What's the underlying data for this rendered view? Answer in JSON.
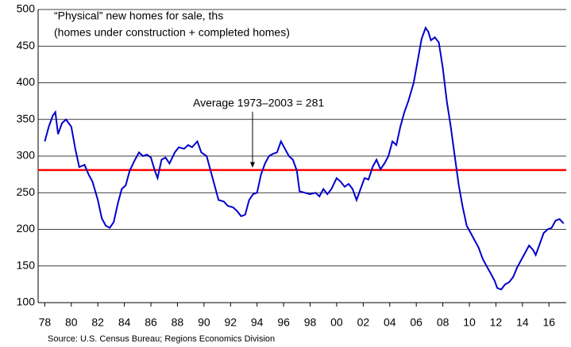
{
  "chart_data": {
    "type": "line",
    "title": "“Physical” new homes for sale, ths",
    "subtitle": "(homes under construction + completed homes)",
    "source": "Source: U.S. Census Bureau; Regions Economics Division",
    "annotation": "Average 1973–2003 = 281",
    "reference_line": {
      "value": 281,
      "color": "#ff0000"
    },
    "ylim": [
      100,
      500
    ],
    "yticks": [
      100,
      150,
      200,
      250,
      300,
      350,
      400,
      450,
      500
    ],
    "xlim": [
      1977.5,
      2017.3
    ],
    "xticks": [
      {
        "value": 1978,
        "label": "78"
      },
      {
        "value": 1980,
        "label": "80"
      },
      {
        "value": 1982,
        "label": "82"
      },
      {
        "value": 1984,
        "label": "84"
      },
      {
        "value": 1986,
        "label": "86"
      },
      {
        "value": 1988,
        "label": "88"
      },
      {
        "value": 1990,
        "label": "90"
      },
      {
        "value": 1992,
        "label": "92"
      },
      {
        "value": 1994,
        "label": "94"
      },
      {
        "value": 1996,
        "label": "96"
      },
      {
        "value": 1998,
        "label": "98"
      },
      {
        "value": 2000,
        "label": "00"
      },
      {
        "value": 2002,
        "label": "02"
      },
      {
        "value": 2004,
        "label": "04"
      },
      {
        "value": 2006,
        "label": "06"
      },
      {
        "value": 2008,
        "label": "08"
      },
      {
        "value": 2010,
        "label": "10"
      },
      {
        "value": 2012,
        "label": "12"
      },
      {
        "value": 2014,
        "label": "14"
      },
      {
        "value": 2016,
        "label": "16"
      }
    ],
    "grid": true,
    "series": [
      {
        "color": "#0000cc",
        "x": [
          1978.0,
          1978.3,
          1978.6,
          1978.8,
          1979.0,
          1979.3,
          1979.6,
          1980.0,
          1980.3,
          1980.6,
          1981.0,
          1981.3,
          1981.6,
          1982.0,
          1982.3,
          1982.6,
          1982.9,
          1983.2,
          1983.5,
          1983.8,
          1984.1,
          1984.4,
          1984.8,
          1985.1,
          1985.4,
          1985.7,
          1986.0,
          1986.3,
          1986.5,
          1986.8,
          1987.1,
          1987.4,
          1987.8,
          1988.1,
          1988.5,
          1988.8,
          1989.1,
          1989.5,
          1989.8,
          1990.2,
          1990.5,
          1990.8,
          1991.1,
          1991.5,
          1991.8,
          1992.2,
          1992.5,
          1992.8,
          1993.1,
          1993.4,
          1993.7,
          1994.0,
          1994.3,
          1994.6,
          1994.9,
          1995.2,
          1995.5,
          1995.8,
          1996.1,
          1996.4,
          1996.7,
          1997.0,
          1997.2,
          1997.6,
          1998.0,
          1998.4,
          1998.7,
          1999.0,
          1999.3,
          1999.6,
          2000.0,
          2000.3,
          2000.6,
          2000.9,
          2001.2,
          2001.5,
          2001.8,
          2002.1,
          2002.4,
          2002.7,
          2003.0,
          2003.3,
          2003.6,
          2003.9,
          2004.2,
          2004.5,
          2004.8,
          2005.1,
          2005.4,
          2005.8,
          2006.1,
          2006.4,
          2006.7,
          2006.9,
          2007.1,
          2007.4,
          2007.7,
          2008.0,
          2008.3,
          2008.6,
          2008.9,
          2009.2,
          2009.5,
          2009.8,
          2010.1,
          2010.4,
          2010.7,
          2011.0,
          2011.3,
          2011.6,
          2011.9,
          2012.1,
          2012.4,
          2012.7,
          2013.0,
          2013.3,
          2013.6,
          2013.9,
          2014.2,
          2014.5,
          2014.8,
          2015.0,
          2015.3,
          2015.6,
          2015.9,
          2016.2,
          2016.5,
          2016.8,
          2017.1
        ],
        "values": [
          320,
          340,
          355,
          360,
          330,
          345,
          350,
          340,
          310,
          285,
          288,
          275,
          265,
          240,
          215,
          205,
          202,
          210,
          235,
          255,
          260,
          280,
          295,
          305,
          300,
          302,
          298,
          280,
          270,
          295,
          298,
          290,
          305,
          312,
          310,
          315,
          312,
          320,
          305,
          300,
          280,
          260,
          240,
          238,
          232,
          230,
          225,
          218,
          220,
          240,
          248,
          250,
          275,
          290,
          300,
          303,
          305,
          320,
          310,
          300,
          295,
          280,
          252,
          250,
          248,
          250,
          245,
          255,
          248,
          255,
          270,
          265,
          258,
          262,
          255,
          240,
          255,
          270,
          268,
          285,
          295,
          282,
          290,
          300,
          320,
          315,
          340,
          360,
          375,
          400,
          430,
          460,
          475,
          470,
          458,
          462,
          455,
          420,
          375,
          340,
          300,
          260,
          230,
          205,
          195,
          185,
          175,
          160,
          150,
          140,
          130,
          120,
          118,
          125,
          128,
          135,
          148,
          158,
          168,
          178,
          172,
          165,
          180,
          195,
          200,
          202,
          212,
          214,
          208
        ]
      }
    ]
  }
}
